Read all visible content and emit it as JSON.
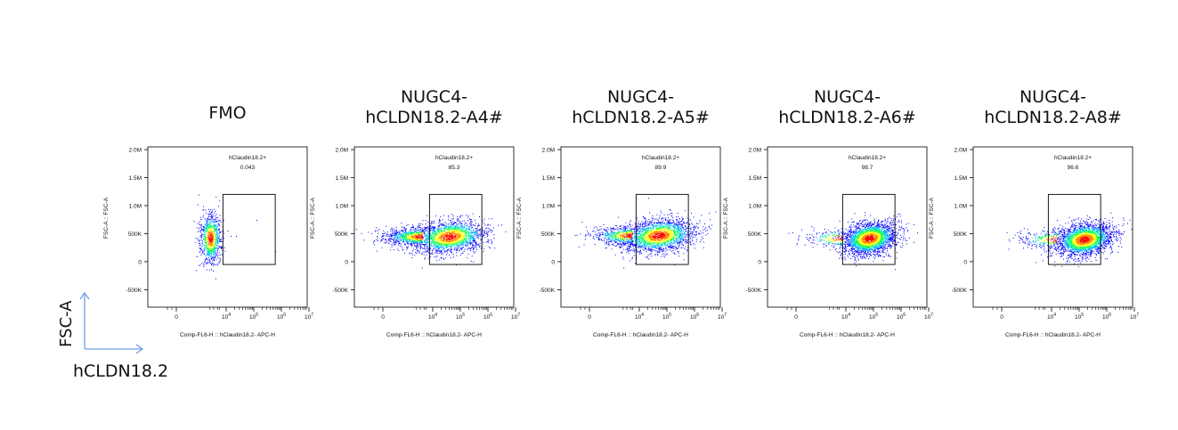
{
  "colors": {
    "axis": "#000000",
    "gate": "#000000",
    "legend_arrow": "#6f9fe6",
    "density": [
      "#0000ff",
      "#00b0ff",
      "#00ff60",
      "#ffff00",
      "#ff8000",
      "#ff0000"
    ]
  },
  "legend": {
    "y_label": "FSC-A",
    "x_label": "hCLDN18.2"
  },
  "chart_data": [
    {
      "type": "scatter",
      "title": "FMO",
      "gate": {
        "label": "hClaudin18.2+",
        "percent": "0.043",
        "x_range": [
          5500,
          600000
        ],
        "y_range": [
          -50000,
          1200000
        ]
      },
      "ylabel": "FSC-A :: FSC-A",
      "xlabel": "Comp-FL6-H :: hClaudin18.2- APC-H",
      "y_ticks": [
        "2.0M",
        "1.5M",
        "1.0M",
        "500K",
        "0",
        "-500K"
      ],
      "x_ticks": [
        "0",
        "10^4",
        "10^5",
        "10^6",
        "10^7"
      ],
      "ylim": [
        -700000,
        2000000
      ],
      "clusters": [
        {
          "x": 200,
          "y": 420000,
          "x_spread": 150,
          "y_spread": 170000,
          "density": "high"
        }
      ]
    },
    {
      "type": "scatter",
      "title": "NUGC4-\nhCLDN18.2-A4#",
      "gate": {
        "label": "hClaudin18.2+",
        "percent": "85.3",
        "x_range": [
          5500,
          600000
        ],
        "y_range": [
          -50000,
          1200000
        ]
      },
      "ylabel": "FSC-A :: FSC-A",
      "xlabel": "Comp-FL6-H :: hClaudin18.2- APC-H",
      "y_ticks": [
        "2.0M",
        "1.5M",
        "1.0M",
        "500K",
        "0",
        "-500K"
      ],
      "x_ticks": [
        "0",
        "10^4",
        "10^5",
        "10^6",
        "10^7"
      ],
      "ylim": [
        -700000,
        2000000
      ],
      "clusters": [
        {
          "x": 40000,
          "y": 450000,
          "x_spread": "1 decade",
          "y_spread": 200000,
          "density": "high"
        }
      ]
    },
    {
      "type": "scatter",
      "title": "NUGC4-\nhCLDN18.2-A5#",
      "gate": {
        "label": "hClaudin18.2+",
        "percent": "89.9",
        "x_range": [
          5500,
          600000
        ],
        "y_range": [
          -50000,
          1200000
        ]
      },
      "ylabel": "FSC-A :: FSC-A",
      "xlabel": "Comp-FL6-H :: hClaudin18.2- APC-H",
      "y_ticks": [
        "2.0M",
        "1.5M",
        "1.0M",
        "500K",
        "0",
        "-500K"
      ],
      "x_ticks": [
        "0",
        "10^4",
        "10^5",
        "10^6",
        "10^7"
      ],
      "ylim": [
        -700000,
        2000000
      ],
      "clusters": [
        {
          "x": 50000,
          "y": 470000,
          "x_spread": "1 decade",
          "y_spread": 210000,
          "density": "high"
        }
      ]
    },
    {
      "type": "scatter",
      "title": "NUGC4-\nhCLDN18.2-A6#",
      "gate": {
        "label": "hClaudin18.2+",
        "percent": "98.7",
        "x_range": [
          5500,
          600000
        ],
        "y_range": [
          -50000,
          1200000
        ]
      },
      "ylabel": "FSC-A :: FSC-A",
      "xlabel": "Comp-FL6-H :: hClaudin18.2- APC-H",
      "y_ticks": [
        "2.0M",
        "1.5M",
        "1.0M",
        "500K",
        "0",
        "-500K"
      ],
      "x_ticks": [
        "0",
        "10^4",
        "10^5",
        "10^6",
        "10^7"
      ],
      "ylim": [
        -700000,
        2000000
      ],
      "clusters": [
        {
          "x": 70000,
          "y": 420000,
          "x_spread": "0.7 decade",
          "y_spread": 200000,
          "density": "high"
        }
      ]
    },
    {
      "type": "scatter",
      "title": "NUGC4-\nhCLDN18.2-A8#",
      "gate": {
        "label": "hClaudin18.2+",
        "percent": "96.6",
        "x_range": [
          5500,
          600000
        ],
        "y_range": [
          -50000,
          1200000
        ]
      },
      "ylabel": "FSC-A :: FSC-A",
      "xlabel": "Comp-FL6-H :: hClaudin18.2- APC-H",
      "y_ticks": [
        "2.0M",
        "1.5M",
        "1.0M",
        "500K",
        "0",
        "-500K"
      ],
      "x_ticks": [
        "0",
        "10^4",
        "10^5",
        "10^6",
        "10^7"
      ],
      "ylim": [
        -700000,
        2000000
      ],
      "clusters": [
        {
          "x": 150000,
          "y": 400000,
          "x_spread": "0.8 decade",
          "y_spread": 190000,
          "density": "high"
        }
      ]
    }
  ]
}
